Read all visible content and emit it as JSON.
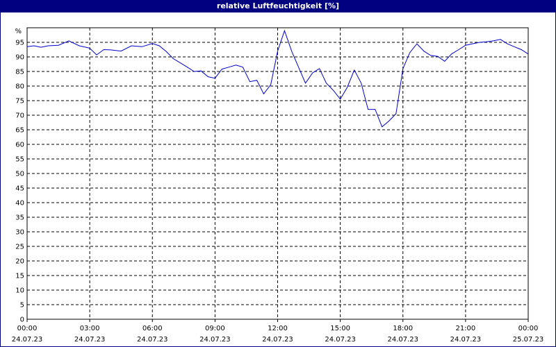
{
  "title": "relative Luftfeuchtigkeit [%]",
  "chart_data": {
    "type": "line",
    "title": "relative Luftfeuchtigkeit [%]",
    "ylabel": "%",
    "ylim": [
      0,
      100
    ],
    "y_ticks": [
      0,
      5,
      10,
      15,
      20,
      25,
      30,
      35,
      40,
      45,
      50,
      55,
      60,
      65,
      70,
      75,
      80,
      85,
      90,
      95
    ],
    "xlim_hours": [
      0,
      24
    ],
    "x_ticks": [
      {
        "hours": 0,
        "time": "00:00",
        "date": "24.07.23"
      },
      {
        "hours": 3,
        "time": "03:00",
        "date": "24.07.23"
      },
      {
        "hours": 6,
        "time": "06:00",
        "date": "24.07.23"
      },
      {
        "hours": 9,
        "time": "09:00",
        "date": "24.07.23"
      },
      {
        "hours": 12,
        "time": "12:00",
        "date": "24.07.23"
      },
      {
        "hours": 15,
        "time": "15:00",
        "date": "24.07.23"
      },
      {
        "hours": 18,
        "time": "18:00",
        "date": "24.07.23"
      },
      {
        "hours": 21,
        "time": "21:00",
        "date": "24.07.23"
      },
      {
        "hours": 24,
        "time": "00:00",
        "date": "25.07.23"
      }
    ],
    "grid": true,
    "line_color": "#0000cc",
    "series": [
      {
        "x": [
          0,
          0.33,
          0.67,
          1,
          1.5,
          2,
          2.5,
          3,
          3.33,
          3.67,
          4,
          4.5,
          5,
          5.5,
          6,
          6.33,
          6.67,
          7,
          7.33,
          7.67,
          8,
          8.33,
          8.67,
          9,
          9.33,
          9.67,
          10,
          10.33,
          10.67,
          11,
          11.33,
          11.67,
          12,
          12.33,
          12.67,
          13,
          13.33,
          13.67,
          14,
          14.33,
          14.67,
          15,
          15.33,
          15.67,
          16,
          16.33,
          16.67,
          17,
          17.33,
          17.67,
          18,
          18.33,
          18.67,
          19,
          19.33,
          19.67,
          20,
          20.33,
          20.67,
          21,
          21.33,
          21.67,
          22,
          22.33,
          22.67,
          23,
          23.33,
          23.67,
          24
        ],
        "y": [
          93.5,
          93.8,
          93.3,
          93.8,
          94,
          95.5,
          93.8,
          93,
          90.7,
          92.5,
          92.4,
          92,
          93.8,
          93.5,
          94.6,
          93.8,
          91.8,
          89.4,
          88,
          86.5,
          85,
          85.2,
          83.2,
          82.7,
          85.8,
          86.5,
          87.2,
          86.5,
          81.5,
          82,
          77.3,
          80.5,
          92,
          99,
          92,
          86.5,
          81,
          84.5,
          86,
          81,
          78.5,
          75.5,
          79.5,
          85.5,
          81,
          72,
          72,
          66,
          68,
          70.5,
          86,
          91.5,
          94.5,
          92,
          90.5,
          90.2,
          88.5,
          91,
          92.5,
          94,
          94.5,
          95,
          95.2,
          95.5,
          96,
          94.5,
          93.5,
          92.5,
          91
        ]
      }
    ]
  }
}
